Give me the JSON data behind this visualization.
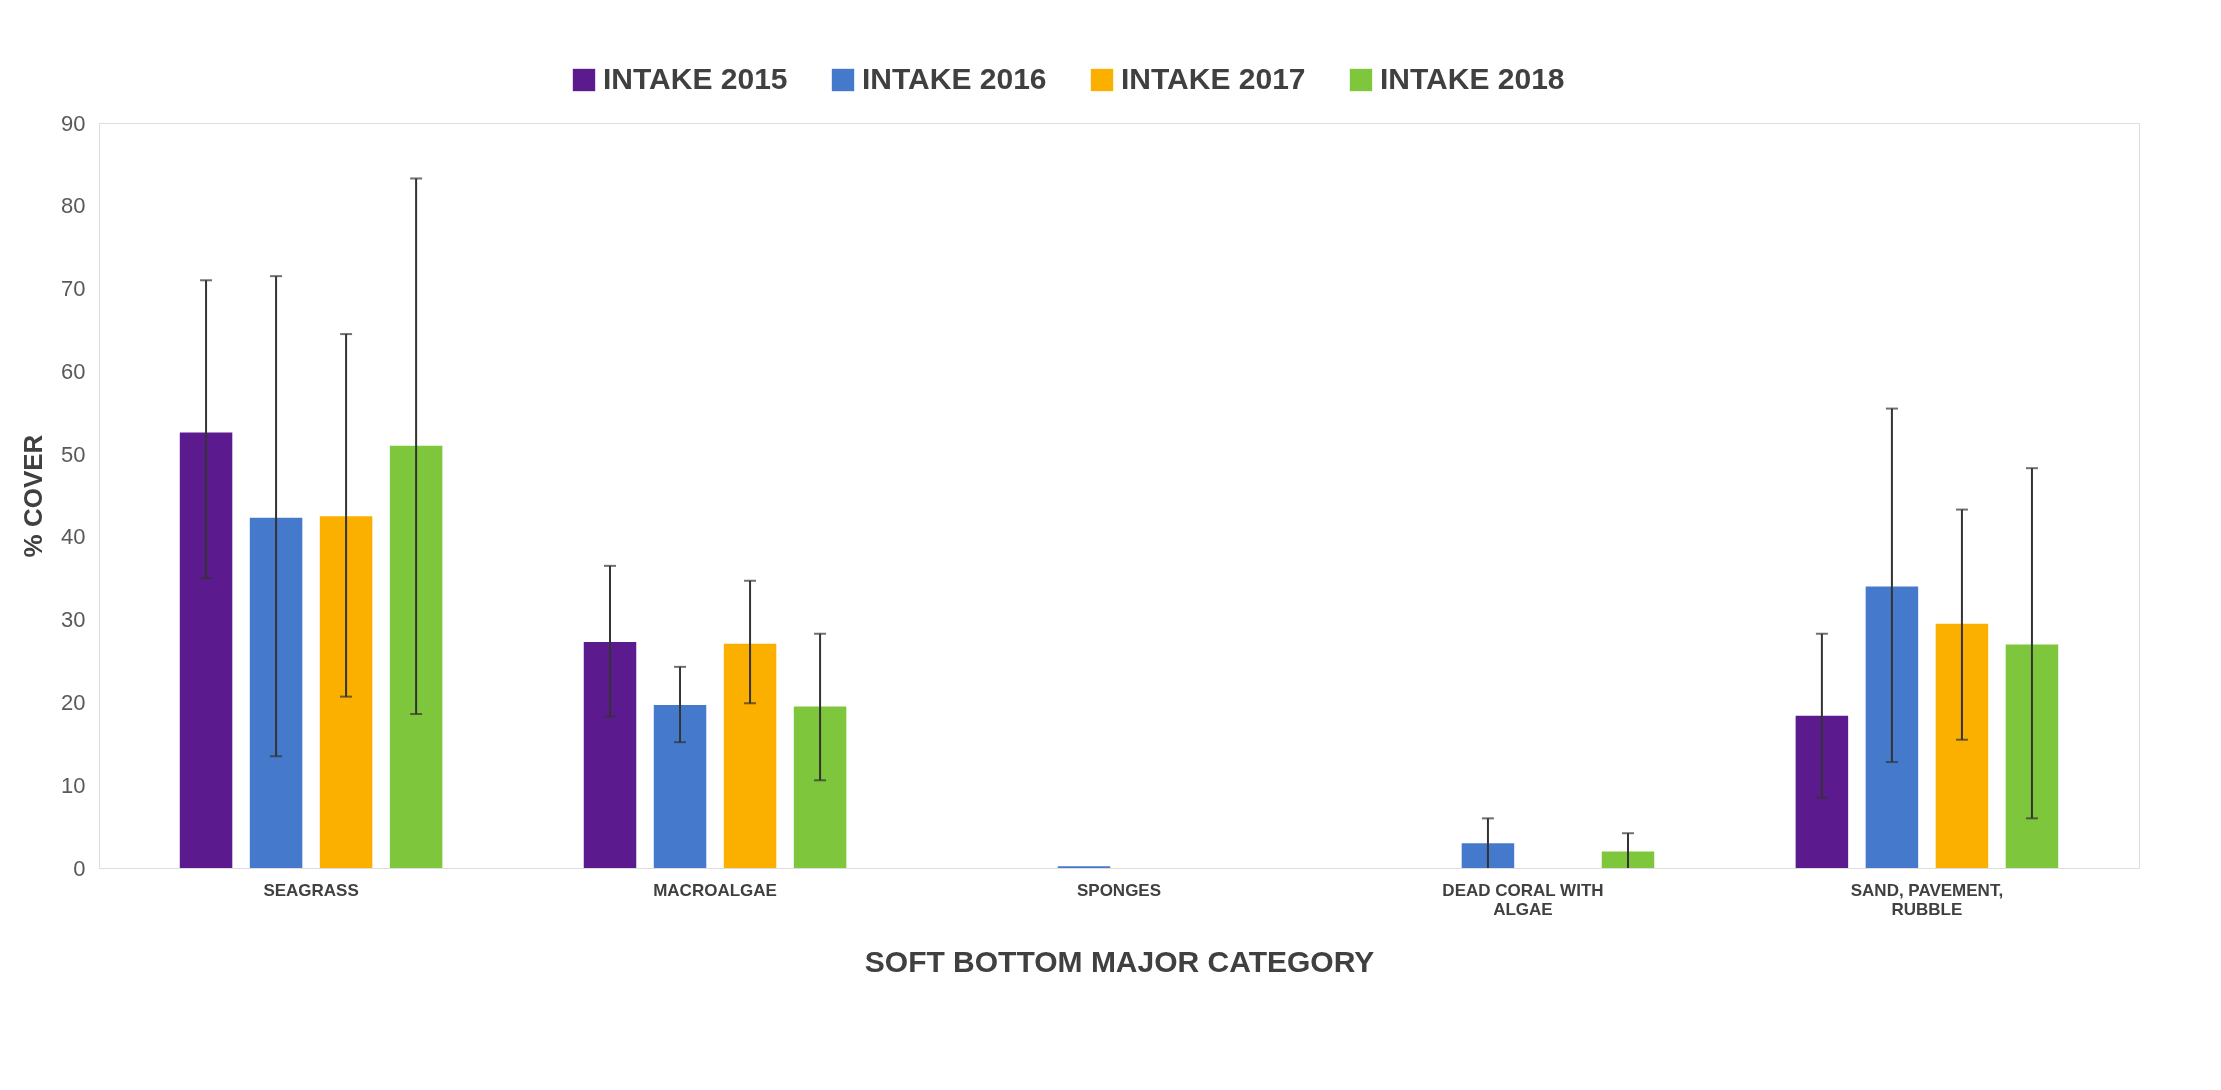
{
  "chart_data": {
    "type": "bar",
    "xlabel": "SOFT BOTTOM MAJOR CATEGORY",
    "ylabel": "% COVER",
    "categories": [
      "SEAGRASS",
      "MACROALGAE",
      "SPONGES",
      "DEAD CORAL WITH ALGAE",
      "SAND, PAVEMENT, RUBBLE"
    ],
    "series": [
      {
        "name": "INTAKE 2015",
        "color": "#5c1a8f",
        "values": [
          52.6,
          27.3,
          0,
          0,
          18.4
        ],
        "errors": [
          [
            35,
            71
          ],
          [
            18.3,
            36.5
          ],
          null,
          null,
          [
            8.5,
            28.3
          ]
        ]
      },
      {
        "name": "INTAKE 2016",
        "color": "#4479cc",
        "values": [
          42.3,
          19.7,
          0.2,
          3,
          34
        ],
        "errors": [
          [
            13.5,
            71.5
          ],
          [
            15.2,
            24.3
          ],
          null,
          [
            0,
            6
          ],
          [
            12.8,
            55.5
          ]
        ]
      },
      {
        "name": "INTAKE 2017",
        "color": "#fbb000",
        "values": [
          42.5,
          27.1,
          0,
          0,
          29.5
        ],
        "errors": [
          [
            20.7,
            64.5
          ],
          [
            19.9,
            34.7
          ],
          null,
          null,
          [
            15.5,
            43.3
          ]
        ]
      },
      {
        "name": "INTAKE 2018",
        "color": "#7ec63b",
        "values": [
          51,
          19.5,
          0,
          2,
          27
        ],
        "errors": [
          [
            18.6,
            83.3
          ],
          [
            10.6,
            28.3
          ],
          null,
          [
            0,
            4.2
          ],
          [
            6,
            48.3
          ]
        ]
      }
    ],
    "ylim": [
      0,
      90
    ],
    "yticks": [
      0,
      10,
      20,
      30,
      40,
      50,
      60,
      70,
      80,
      90
    ],
    "grid": false,
    "legend": "top"
  }
}
